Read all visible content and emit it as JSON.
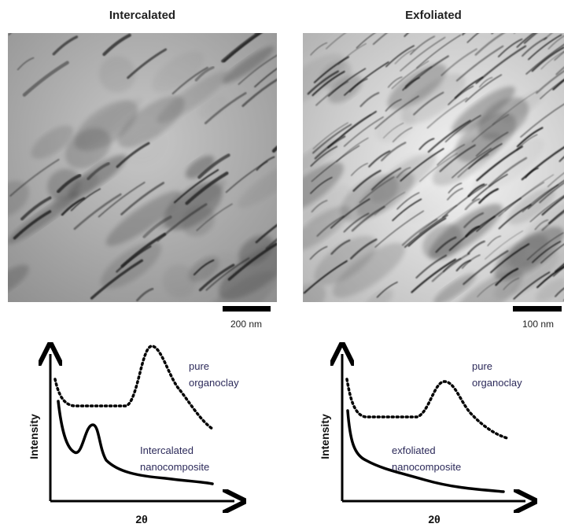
{
  "panels": [
    {
      "title": "Intercalated",
      "scale_bar": "200 nm",
      "plot": {
        "y_label": "Intensity",
        "x_label": "2θ",
        "upper_label": [
          "pure",
          "organoclay"
        ],
        "lower_label": [
          "Intercalated",
          "nanocomposite"
        ]
      }
    },
    {
      "title": "Exfoliated",
      "scale_bar": "100 nm",
      "plot": {
        "y_label": "Intensity",
        "x_label": "2θ",
        "upper_label": [
          "pure",
          "organoclay"
        ],
        "lower_label": [
          "exfoliated",
          "nanocomposite"
        ]
      }
    }
  ]
}
